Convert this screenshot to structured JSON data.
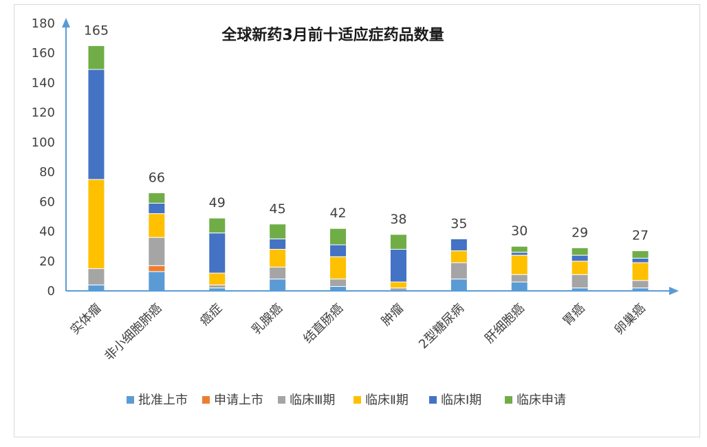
{
  "chart_data": {
    "type": "bar",
    "stacked": true,
    "title": "全球新药3月前十适应症药品数量",
    "xlabel": "",
    "ylabel": "",
    "ylim": [
      0,
      180
    ],
    "yticks": [
      0,
      20,
      40,
      60,
      80,
      100,
      120,
      140,
      160,
      180
    ],
    "grid": false,
    "legend_position": "bottom",
    "categories": [
      "实体瘤",
      "非小细胞肺癌",
      "癌症",
      "乳腺癌",
      "结直肠癌",
      "肿瘤",
      "2型糖尿病",
      "肝细胞癌",
      "胃癌",
      "卵巢癌"
    ],
    "totals": [
      165,
      66,
      49,
      45,
      42,
      38,
      35,
      30,
      29,
      27
    ],
    "series": [
      {
        "name": "批准上市",
        "color": "#5B9BD5",
        "values": [
          4,
          13,
          2,
          8,
          3,
          0,
          8,
          6,
          2,
          2
        ]
      },
      {
        "name": "申请上市",
        "color": "#ED7D31",
        "values": [
          0,
          4,
          0,
          0,
          0,
          0,
          0,
          0,
          0,
          0
        ]
      },
      {
        "name": "临床Ⅲ期",
        "color": "#A5A5A5",
        "values": [
          11,
          19,
          2,
          8,
          5,
          2,
          11,
          5,
          9,
          5
        ]
      },
      {
        "name": "临床Ⅱ期",
        "color": "#FFC000",
        "values": [
          60,
          16,
          8,
          12,
          15,
          4,
          8,
          13,
          9,
          12
        ]
      },
      {
        "name": "临床Ⅰ期",
        "color": "#4472C4",
        "values": [
          74,
          7,
          27,
          7,
          8,
          22,
          8,
          2,
          4,
          3
        ]
      },
      {
        "name": "临床申请",
        "color": "#70AD47",
        "values": [
          16,
          7,
          10,
          10,
          11,
          10,
          0,
          4,
          5,
          5
        ]
      }
    ],
    "axis_color": "#5B9BD5"
  }
}
